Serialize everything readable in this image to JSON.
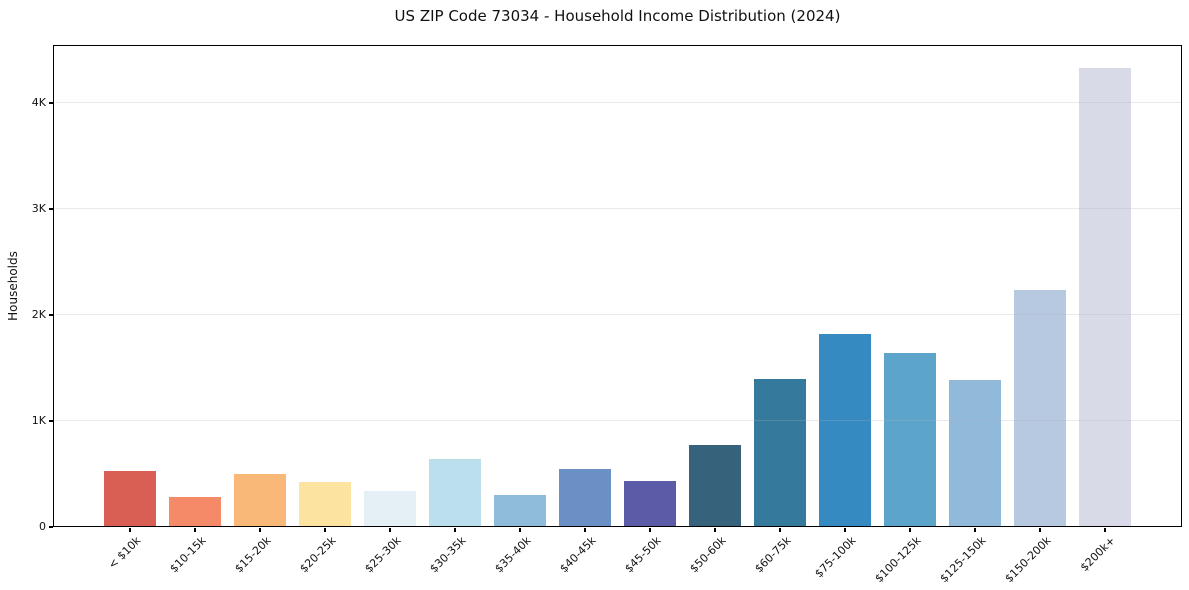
{
  "chart_data": {
    "type": "bar",
    "title": "US ZIP Code 73034 - Household Income Distribution (2024)",
    "xlabel": "",
    "ylabel": "Households",
    "categories": [
      "< $10k",
      "$10-15k",
      "$15-20k",
      "$20-25k",
      "$25-30k",
      "$30-35k",
      "$35-40k",
      "$40-45k",
      "$45-50k",
      "$50-60k",
      "$60-75k",
      "$75-100k",
      "$100-125k",
      "$125-150k",
      "$150-200k",
      "$200k+"
    ],
    "values": [
      530,
      280,
      500,
      420,
      340,
      640,
      300,
      550,
      430,
      770,
      1400,
      1820,
      1640,
      1390,
      2240,
      4330
    ],
    "bar_colors": [
      "#d95f55",
      "#f58a68",
      "#f9b877",
      "#fce3a0",
      "#e4f0f5",
      "#bcdfed",
      "#8fbcdb",
      "#6a90c6",
      "#5c5ba8",
      "#36627b",
      "#35799d",
      "#358ac1",
      "#5ca4ca",
      "#90b9da",
      "#b7c9e0",
      "#d8dae7"
    ],
    "ylim": [
      0,
      4547
    ],
    "yticks": {
      "values": [
        0,
        1000,
        2000,
        3000,
        4000
      ],
      "labels": [
        "0",
        "1K",
        "2K",
        "3K",
        "4K"
      ]
    },
    "grid": "horizontal-light",
    "legend": "none",
    "background": "#ffffff",
    "axis_color": "#000000",
    "grid_color": "#e9e9ec"
  }
}
